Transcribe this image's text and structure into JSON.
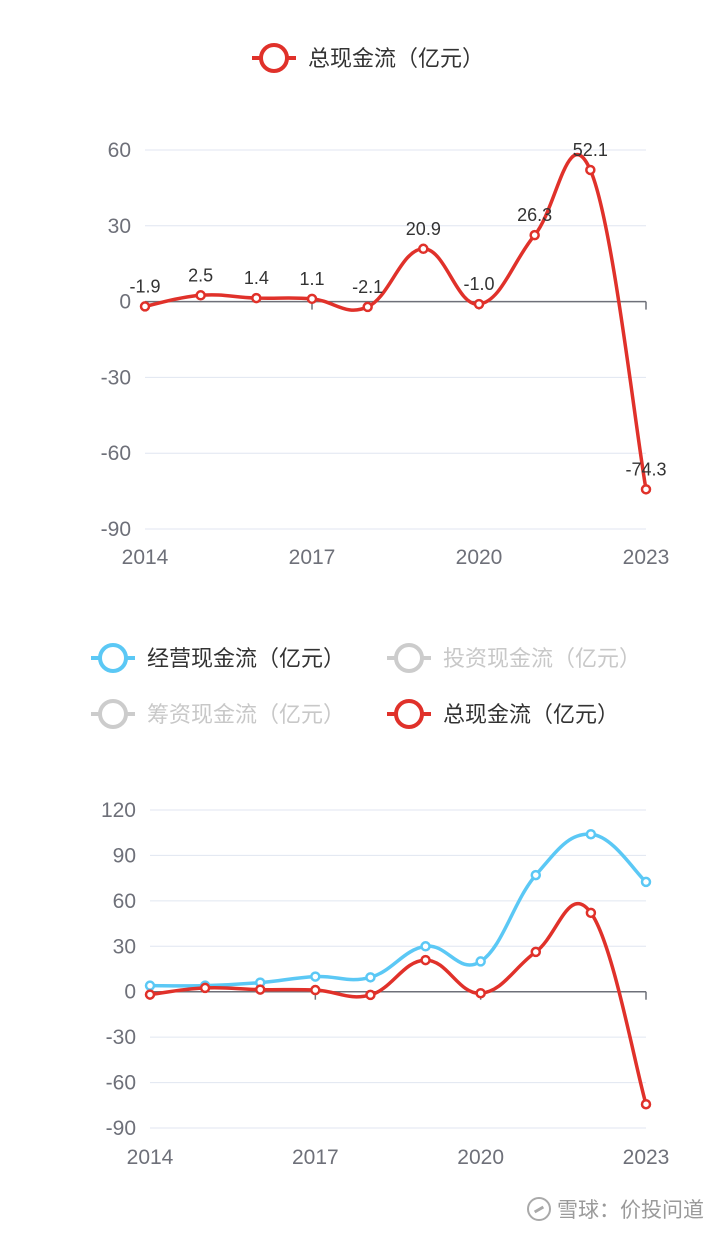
{
  "chart_data": [
    {
      "type": "line",
      "x": [
        2014,
        2015,
        2016,
        2017,
        2018,
        2019,
        2020,
        2021,
        2022,
        2023
      ],
      "x_tick_labels": [
        "2014",
        "2017",
        "2020",
        "2023"
      ],
      "y_tick_labels": [
        "60",
        "30",
        "0",
        "-30",
        "-60",
        "-90"
      ],
      "ylim": [
        -90,
        60
      ],
      "smooth": true,
      "series": [
        {
          "name": "总现金流（亿元）",
          "color": "#e0312a",
          "values": [
            -1.9,
            2.5,
            1.4,
            1.1,
            -2.1,
            20.9,
            -1.0,
            26.3,
            52.1,
            -74.3
          ],
          "data_labels": [
            "-1.9",
            "2.5",
            "1.4",
            "1.1",
            "-2.1",
            "20.9",
            "-1.0",
            "26.3",
            "52.1",
            "-74.3"
          ]
        }
      ],
      "legend": [
        {
          "label": "总现金流（亿元）",
          "color": "#e0312a",
          "active": true
        }
      ],
      "grid": true,
      "legend_position": "top-center"
    },
    {
      "type": "line",
      "x": [
        2014,
        2015,
        2016,
        2017,
        2018,
        2019,
        2020,
        2021,
        2022,
        2023
      ],
      "x_tick_labels": [
        "2014",
        "2017",
        "2020",
        "2023"
      ],
      "y_tick_labels": [
        "120",
        "90",
        "60",
        "30",
        "0",
        "-30",
        "-60",
        "-90"
      ],
      "ylim": [
        -90,
        120
      ],
      "smooth": true,
      "series": [
        {
          "name": "经营现金流（亿元）",
          "color": "#5bc8f5",
          "values": [
            4.0,
            4.0,
            6.0,
            10.0,
            9.5,
            30.0,
            20.0,
            77.0,
            104.0,
            72.5
          ]
        },
        {
          "name": "总现金流（亿元）",
          "color": "#e0312a",
          "values": [
            -1.9,
            2.5,
            1.4,
            1.1,
            -2.1,
            20.9,
            -1.0,
            26.3,
            52.1,
            -74.3
          ]
        }
      ],
      "legend": [
        {
          "label": "经营现金流（亿元）",
          "color": "#5bc8f5",
          "active": true
        },
        {
          "label": "投资现金流（亿元）",
          "color": "#cccccc",
          "active": false
        },
        {
          "label": "筹资现金流（亿元）",
          "color": "#cccccc",
          "active": false
        },
        {
          "label": "总现金流（亿元）",
          "color": "#e0312a",
          "active": true
        }
      ],
      "grid": true,
      "legend_position": "top-center"
    }
  ],
  "watermark": {
    "text": "雪球：价投问道"
  }
}
